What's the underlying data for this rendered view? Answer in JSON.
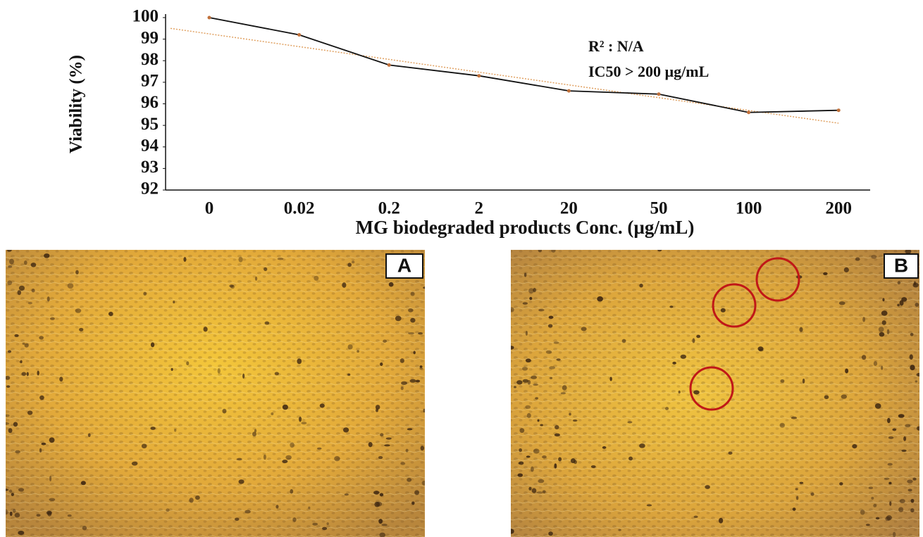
{
  "chart_data": {
    "type": "line",
    "y_label": "Viability (%)",
    "x_label": "MG biodegraded products Conc. (µg/mL)",
    "annotations": [
      "R² : N/A",
      "IC50 > 200 µg/mL"
    ],
    "categories": [
      "0",
      "0.02",
      "0.2",
      "2",
      "20",
      "50",
      "100",
      "200"
    ],
    "series": [
      {
        "color": "#111111",
        "marker_color": "#c0703a",
        "values": [
          100,
          99.2,
          97.8,
          97.3,
          96.6,
          96.45,
          95.6,
          95.7
        ]
      }
    ],
    "trend": {
      "color": "#e0a060",
      "start": 99.5,
      "end": 95.1
    },
    "ylim": [
      92,
      100
    ],
    "yticks": [
      92,
      93,
      94,
      95,
      96,
      97,
      98,
      99,
      100
    ]
  },
  "panels": [
    "A",
    "B"
  ]
}
